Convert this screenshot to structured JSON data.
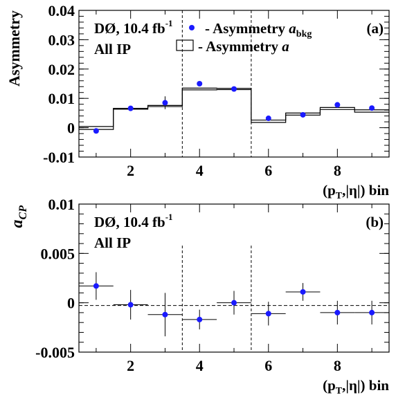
{
  "colors": {
    "points": "#1a1aff",
    "lines": "#000000"
  },
  "chart_data": [
    {
      "type": "scatter",
      "panel_label": "(a)",
      "ylabel": "Asymmetry",
      "xlabel": "(p_T,|η|) bin",
      "xlim": [
        0.5,
        9.5
      ],
      "ylim": [
        -0.01,
        0.04
      ],
      "x_ticks": [
        "2",
        "4",
        "6",
        "8"
      ],
      "y_ticks": [
        "-0.01",
        "0",
        "0.01",
        "0.02",
        "0.03",
        "0.04"
      ],
      "experiment_label": "DØ, 10.4 fb",
      "experiment_sup": "-1",
      "selection_label": "All IP",
      "vertical_dashed_lines": [
        3.5,
        5.5
      ],
      "legend": [
        {
          "symbol": "marker",
          "prefix": "- Asymmetry ",
          "var": "a",
          "sub": "bkg"
        },
        {
          "symbol": "box",
          "prefix": "- Asymmetry ",
          "var": "a",
          "sub": ""
        }
      ],
      "series": [
        {
          "name": "a_bkg",
          "kind": "points",
          "x": [
            1,
            2,
            3,
            4,
            5,
            6,
            7,
            8,
            9
          ],
          "y": [
            -0.0011,
            0.0066,
            0.0085,
            0.015,
            0.0132,
            0.0032,
            0.0044,
            0.0078,
            0.0067
          ],
          "yerr": [
            0.0005,
            0.0005,
            0.0022,
            0.0005,
            0.0005,
            0.0005,
            0.0005,
            0.0005,
            0.0005
          ]
        },
        {
          "name": "a",
          "kind": "histogram_band",
          "x": [
            1,
            2,
            3,
            4,
            5,
            6,
            7,
            8,
            9
          ],
          "y_low": [
            -0.0006,
            0.0063,
            0.0072,
            0.0129,
            0.013,
            0.0018,
            0.0043,
            0.0062,
            0.0053
          ],
          "y_high": [
            0.0004,
            0.0066,
            0.0076,
            0.0135,
            0.0134,
            0.0026,
            0.005,
            0.0069,
            0.0061
          ]
        }
      ]
    },
    {
      "type": "scatter",
      "panel_label": "(b)",
      "ylabel_var": "a",
      "ylabel_sub": "CP",
      "xlabel": "(p_T,|η|) bin",
      "xlim": [
        0.5,
        9.5
      ],
      "ylim": [
        -0.005,
        0.01
      ],
      "x_ticks": [
        "2",
        "4",
        "6",
        "8"
      ],
      "y_ticks": [
        "-0.005",
        "0",
        "0.005",
        "0.01"
      ],
      "experiment_label": "DØ, 10.4 fb",
      "experiment_sup": "-1",
      "selection_label": "All IP",
      "vertical_dashed_lines": [
        3.5,
        5.5
      ],
      "horizontal_dashed_line": -0.00028,
      "series": [
        {
          "name": "a_CP",
          "kind": "points",
          "x": [
            1,
            2,
            3,
            4,
            5,
            6,
            7,
            8,
            9
          ],
          "y": [
            0.0017,
            -0.0002,
            -0.0012,
            -0.0017,
            0.0,
            -0.0011,
            0.0011,
            -0.001,
            -0.001
          ],
          "yerr": [
            0.0014,
            0.0015,
            0.0022,
            0.001,
            0.0012,
            0.0012,
            0.0009,
            0.0012,
            0.0012
          ]
        }
      ]
    }
  ]
}
